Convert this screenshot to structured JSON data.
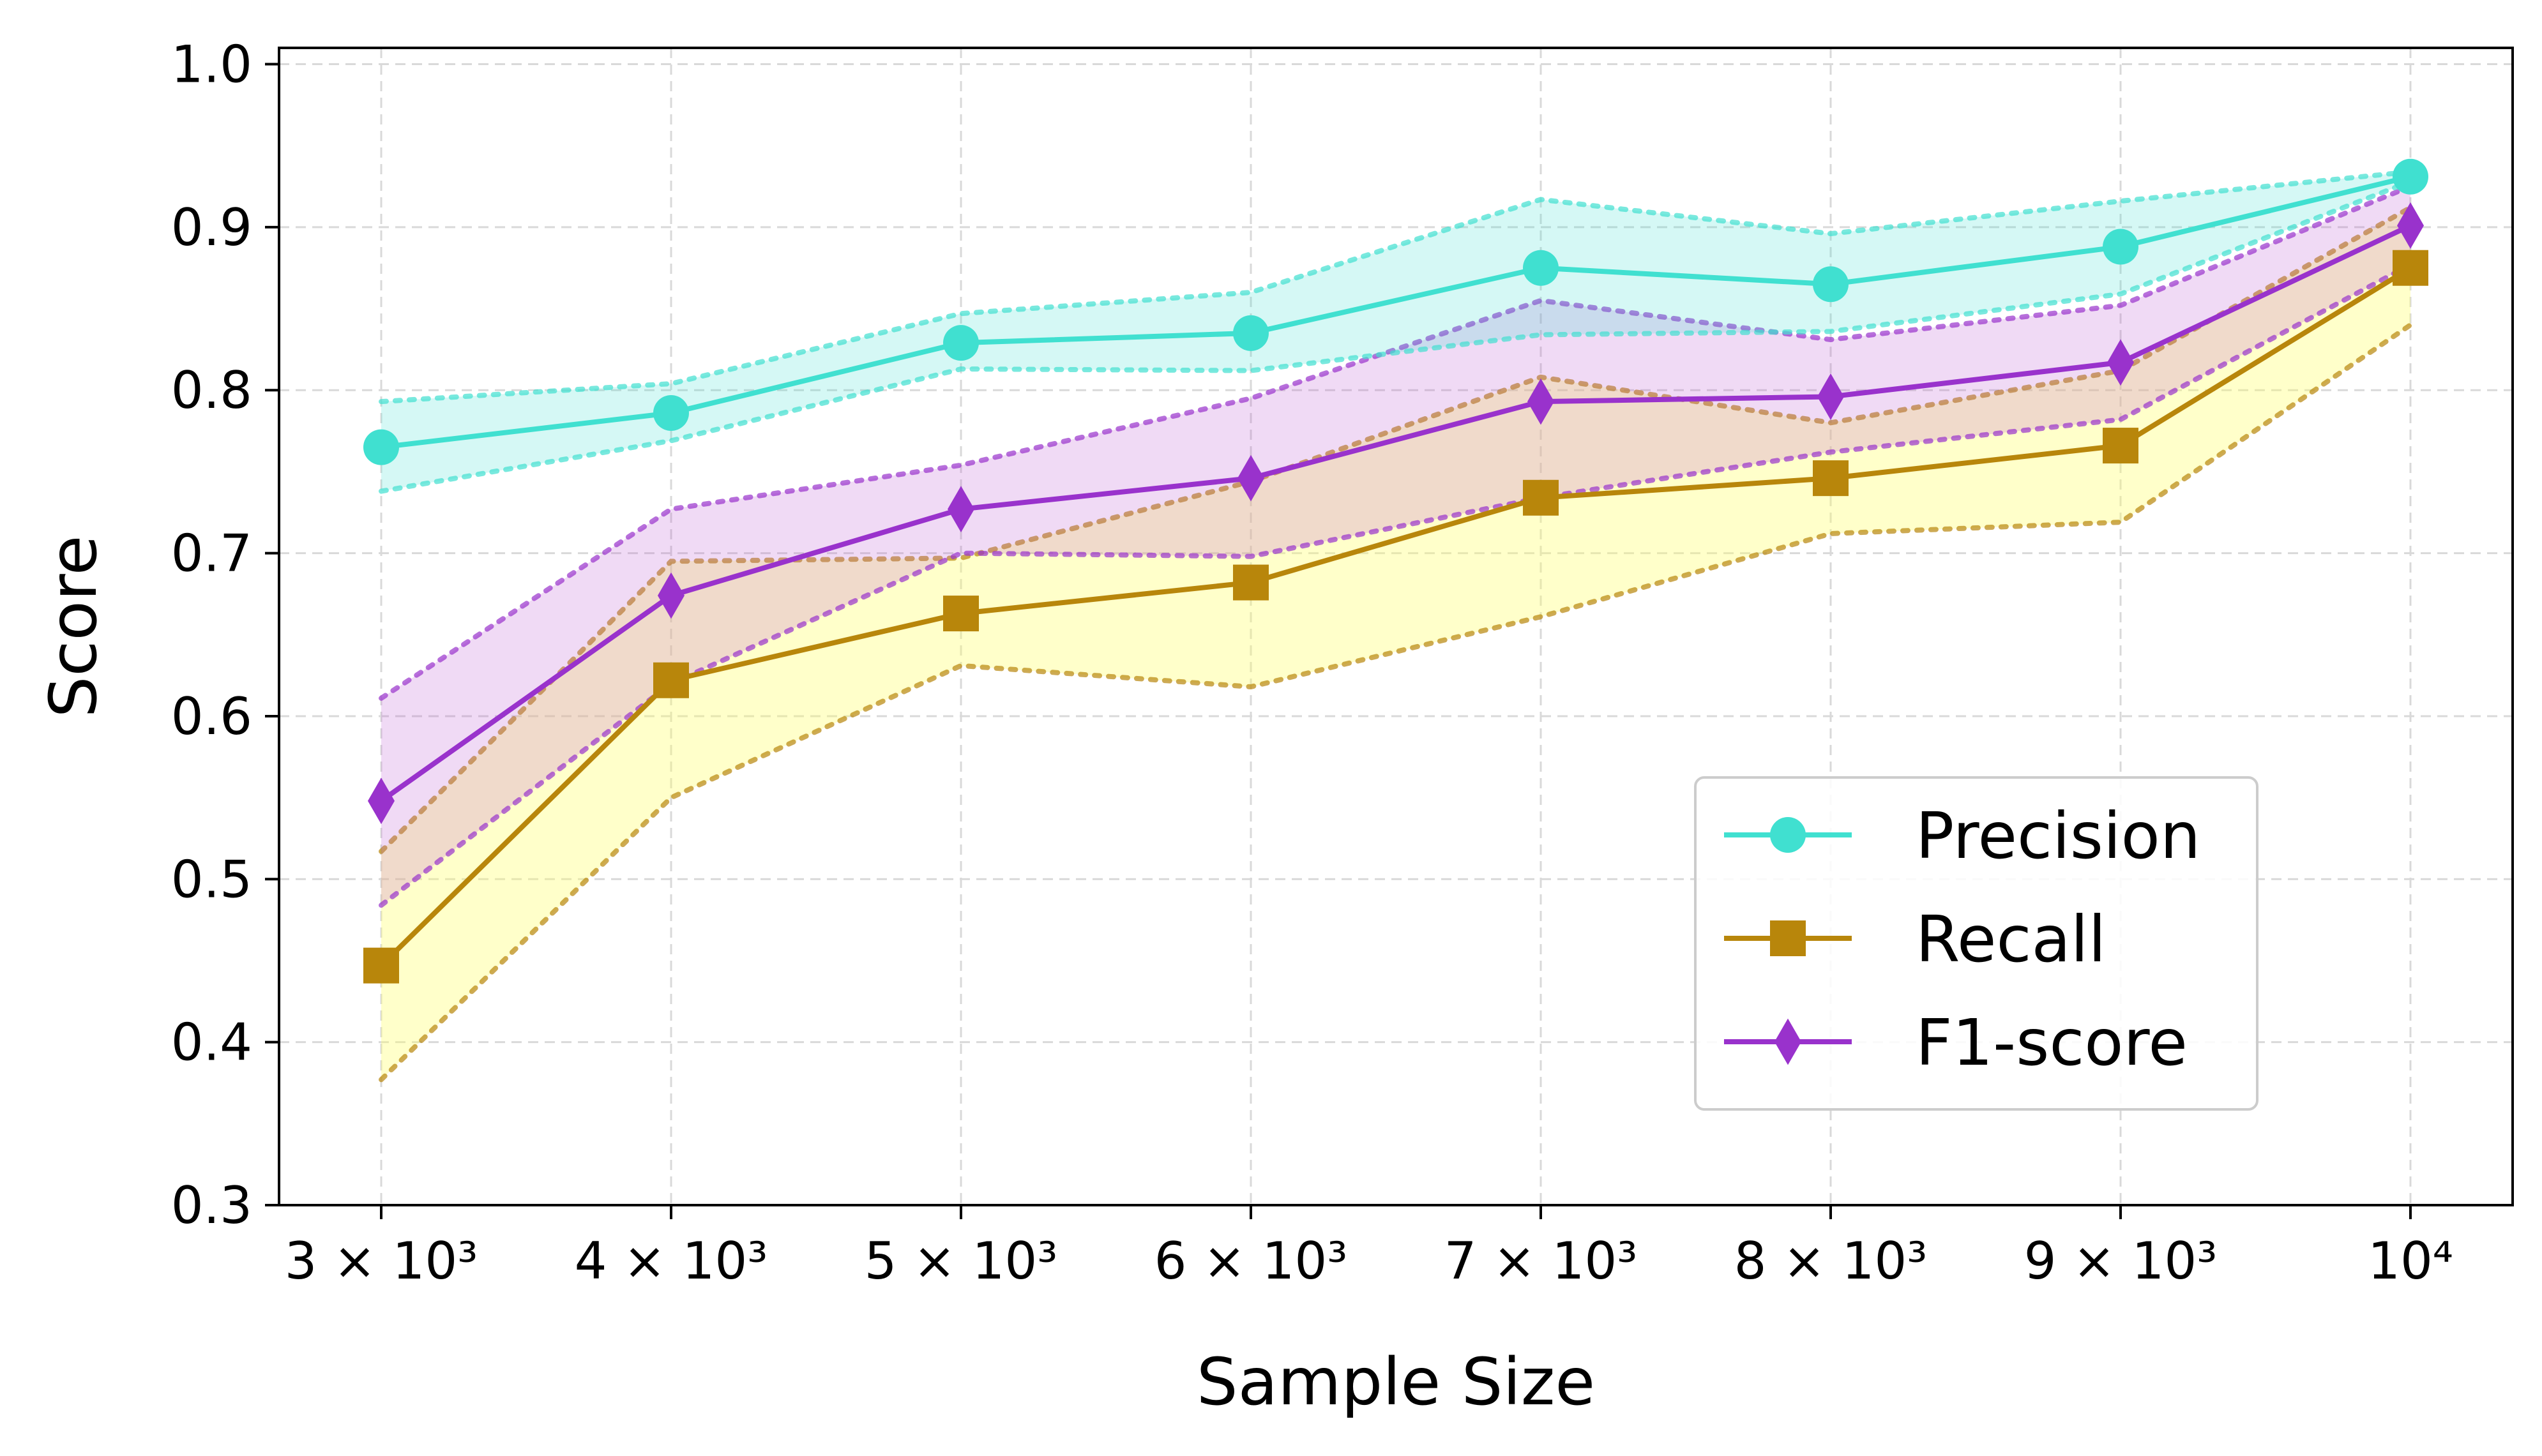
{
  "chart_data": {
    "type": "line",
    "xlabel": "Sample Size",
    "ylabel": "Score",
    "x": [
      3000,
      4000,
      5000,
      6000,
      7000,
      8000,
      9000,
      10000
    ],
    "x_tick_labels": [
      "3 × 10³",
      "4 × 10³",
      "5 × 10³",
      "6 × 10³",
      "7 × 10³",
      "8 × 10³",
      "9 × 10³",
      "10⁴"
    ],
    "y_ticks": [
      0.3,
      0.4,
      0.5,
      0.6,
      0.7,
      0.8,
      0.9,
      1.0
    ],
    "y_tick_labels": [
      "0.3",
      "0.4",
      "0.5",
      "0.6",
      "0.7",
      "0.8",
      "0.9",
      "1.0"
    ],
    "ylim": [
      0.3,
      1.01
    ],
    "grid": true,
    "legend_position": "lower-right",
    "series": [
      {
        "name": "Precision",
        "color": "#40E0D0",
        "marker": "circle",
        "values": [
          0.765,
          0.786,
          0.829,
          0.835,
          0.875,
          0.865,
          0.888,
          0.931
        ],
        "upper": [
          0.793,
          0.804,
          0.847,
          0.86,
          0.917,
          0.896,
          0.916,
          0.934
        ],
        "lower": [
          0.738,
          0.769,
          0.813,
          0.812,
          0.834,
          0.836,
          0.859,
          0.928
        ]
      },
      {
        "name": "Recall",
        "color": "#B8860B",
        "marker": "square",
        "values": [
          0.447,
          0.622,
          0.663,
          0.682,
          0.734,
          0.746,
          0.766,
          0.875
        ],
        "upper": [
          0.517,
          0.695,
          0.697,
          0.744,
          0.808,
          0.78,
          0.812,
          0.912
        ],
        "lower": [
          0.377,
          0.55,
          0.631,
          0.618,
          0.661,
          0.712,
          0.719,
          0.84
        ]
      },
      {
        "name": "F1-score",
        "color": "#9932CC",
        "marker": "diamond",
        "values": [
          0.548,
          0.674,
          0.727,
          0.746,
          0.793,
          0.796,
          0.817,
          0.901
        ],
        "upper": [
          0.611,
          0.727,
          0.754,
          0.795,
          0.855,
          0.831,
          0.852,
          0.925
        ],
        "lower": [
          0.484,
          0.62,
          0.7,
          0.698,
          0.734,
          0.762,
          0.782,
          0.877
        ]
      }
    ]
  }
}
